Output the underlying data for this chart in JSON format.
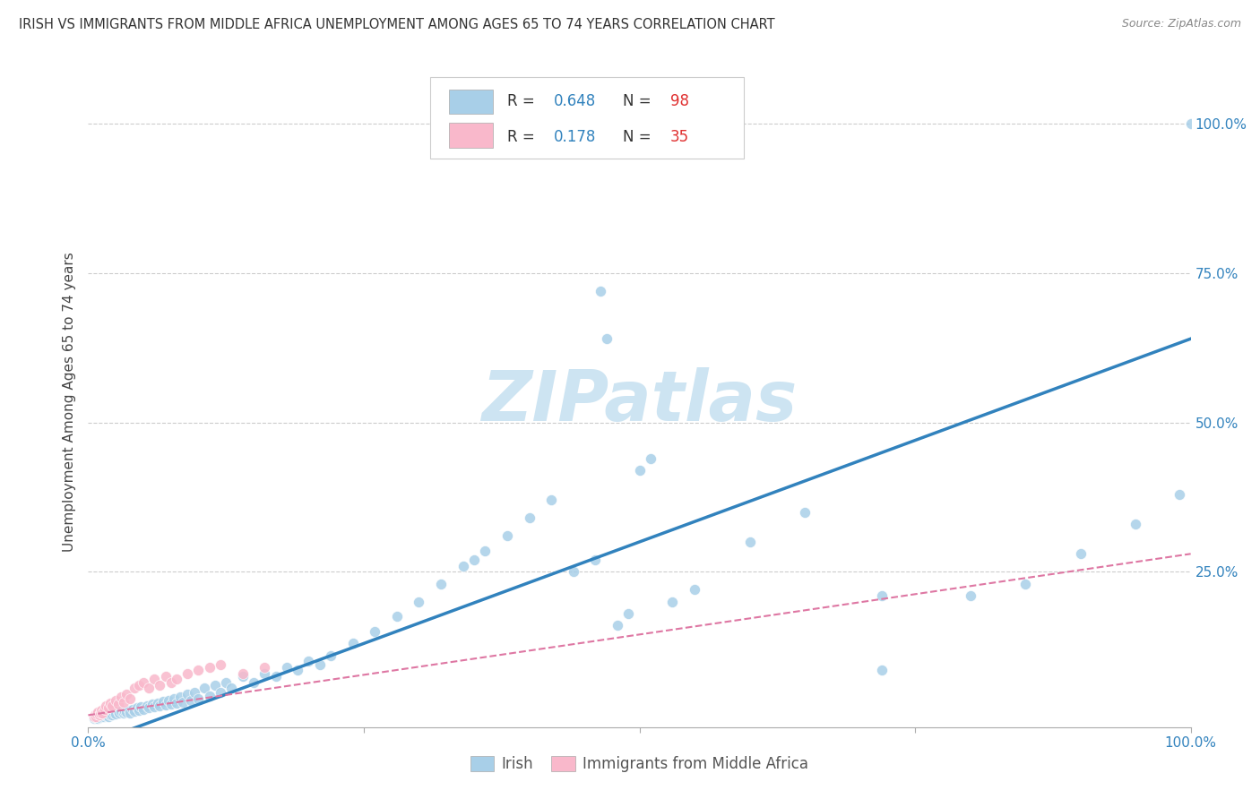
{
  "title": "IRISH VS IMMIGRANTS FROM MIDDLE AFRICA UNEMPLOYMENT AMONG AGES 65 TO 74 YEARS CORRELATION CHART",
  "source": "Source: ZipAtlas.com",
  "ylabel": "Unemployment Among Ages 65 to 74 years",
  "xlim": [
    0.0,
    1.0
  ],
  "ylim": [
    -0.01,
    1.08
  ],
  "irish_R": "0.648",
  "irish_N": "98",
  "immig_R": "0.178",
  "immig_N": "35",
  "irish_face_color": "#a8cfe8",
  "immig_face_color": "#f9b8cb",
  "irish_line_color": "#3182bd",
  "immig_line_color": "#de77a3",
  "axis_tick_color": "#3182bd",
  "title_color": "#333333",
  "source_color": "#888888",
  "watermark_color": "#cde4f2",
  "grid_color": "#cccccc",
  "background_color": "#ffffff",
  "irish_x": [
    0.005,
    0.006,
    0.008,
    0.009,
    0.01,
    0.01,
    0.011,
    0.012,
    0.013,
    0.014,
    0.015,
    0.016,
    0.017,
    0.018,
    0.019,
    0.02,
    0.021,
    0.022,
    0.023,
    0.025,
    0.027,
    0.028,
    0.03,
    0.032,
    0.033,
    0.035,
    0.037,
    0.038,
    0.04,
    0.042,
    0.044,
    0.046,
    0.048,
    0.05,
    0.053,
    0.055,
    0.058,
    0.06,
    0.063,
    0.065,
    0.068,
    0.07,
    0.073,
    0.075,
    0.078,
    0.08,
    0.083,
    0.086,
    0.09,
    0.093,
    0.096,
    0.1,
    0.105,
    0.11,
    0.115,
    0.12,
    0.125,
    0.13,
    0.14,
    0.15,
    0.16,
    0.17,
    0.18,
    0.19,
    0.2,
    0.21,
    0.22,
    0.24,
    0.26,
    0.28,
    0.3,
    0.32,
    0.34,
    0.35,
    0.36,
    0.38,
    0.4,
    0.42,
    0.44,
    0.46,
    0.465,
    0.47,
    0.48,
    0.49,
    0.5,
    0.51,
    0.53,
    0.55,
    0.6,
    0.65,
    0.72,
    0.8,
    0.85,
    0.9,
    0.95,
    0.99,
    1.0,
    0.72
  ],
  "irish_y": [
    0.005,
    0.006,
    0.007,
    0.005,
    0.008,
    0.006,
    0.009,
    0.007,
    0.01,
    0.008,
    0.01,
    0.009,
    0.011,
    0.008,
    0.012,
    0.01,
    0.013,
    0.011,
    0.014,
    0.012,
    0.015,
    0.013,
    0.016,
    0.014,
    0.017,
    0.015,
    0.018,
    0.014,
    0.02,
    0.016,
    0.022,
    0.018,
    0.024,
    0.02,
    0.026,
    0.022,
    0.028,
    0.024,
    0.03,
    0.025,
    0.033,
    0.027,
    0.035,
    0.028,
    0.038,
    0.03,
    0.04,
    0.032,
    0.045,
    0.035,
    0.048,
    0.038,
    0.055,
    0.042,
    0.06,
    0.048,
    0.065,
    0.055,
    0.075,
    0.065,
    0.08,
    0.075,
    0.09,
    0.085,
    0.1,
    0.095,
    0.11,
    0.13,
    0.15,
    0.175,
    0.2,
    0.23,
    0.26,
    0.27,
    0.285,
    0.31,
    0.34,
    0.37,
    0.25,
    0.27,
    0.72,
    0.64,
    0.16,
    0.18,
    0.42,
    0.44,
    0.2,
    0.22,
    0.3,
    0.35,
    0.085,
    0.21,
    0.23,
    0.28,
    0.33,
    0.38,
    1.0,
    0.21
  ],
  "immig_x": [
    0.005,
    0.006,
    0.007,
    0.008,
    0.009,
    0.01,
    0.011,
    0.012,
    0.013,
    0.015,
    0.016,
    0.018,
    0.02,
    0.022,
    0.025,
    0.027,
    0.03,
    0.032,
    0.035,
    0.038,
    0.042,
    0.046,
    0.05,
    0.055,
    0.06,
    0.065,
    0.07,
    0.075,
    0.08,
    0.09,
    0.1,
    0.11,
    0.12,
    0.14,
    0.16
  ],
  "immig_y": [
    0.007,
    0.01,
    0.008,
    0.012,
    0.015,
    0.01,
    0.013,
    0.018,
    0.014,
    0.02,
    0.025,
    0.022,
    0.03,
    0.025,
    0.035,
    0.028,
    0.04,
    0.032,
    0.045,
    0.038,
    0.055,
    0.06,
    0.065,
    0.055,
    0.07,
    0.06,
    0.075,
    0.065,
    0.07,
    0.08,
    0.085,
    0.09,
    0.095,
    0.08,
    0.09
  ]
}
